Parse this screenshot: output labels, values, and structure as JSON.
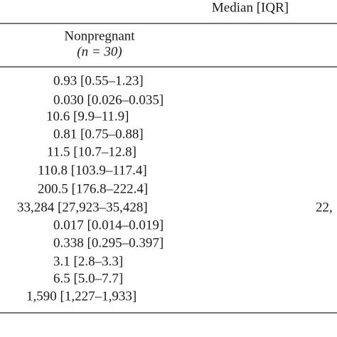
{
  "table": {
    "group_header": "Median [IQR]",
    "column_header": {
      "label": "Nonpregnant",
      "n": "(n = 30)"
    },
    "rows": [
      "0.93 [0.55–1.23]",
      "0.030 [0.026–0.035]",
      "10.6 [9.9–11.9]",
      "0.81 [0.75–0.88]",
      "11.5 [10.7–12.8]",
      "110.8 [103.9–117.4]",
      "200.5 [176.8–222.4]",
      "33,284 [27,923–35,428]",
      "0.017 [0.014–0.019]",
      "0.338 [0.295–0.397]",
      "3.1 [2.8–3.3]",
      "6.5 [5.0–7.7]",
      "1,590 [1,227–1,933]"
    ],
    "cut_off_cell": "22,"
  }
}
